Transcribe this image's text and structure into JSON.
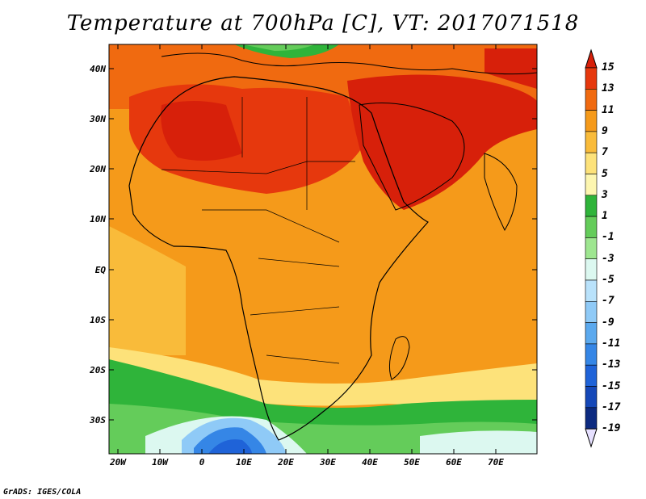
{
  "title": "Temperature at 700hPa [C], VT: 2017071518",
  "lat_labels": [
    "40N",
    "30N",
    "20N",
    "10N",
    "EQ",
    "10S",
    "20S",
    "30S"
  ],
  "lon_labels": [
    "20W",
    "10W",
    "0",
    "10E",
    "20E",
    "30E",
    "40E",
    "50E",
    "60E",
    "70E"
  ],
  "colorbar": {
    "labels": [
      "15",
      "13",
      "11",
      "9",
      "7",
      "5",
      "3",
      "1",
      "-1",
      "-3",
      "-5",
      "-7",
      "-9",
      "-11",
      "-13",
      "-15",
      "-17",
      "-19"
    ],
    "colors": [
      "#d7200a",
      "#e6380d",
      "#f06a10",
      "#f59a1a",
      "#f9bb3a",
      "#fde27a",
      "#fdf6b0",
      "#2fb43a",
      "#64cc5a",
      "#9ee690",
      "#dcf8f0",
      "#b9e2fb",
      "#8fcaf7",
      "#5ba9ee",
      "#3586e6",
      "#1f63d8",
      "#1548b8",
      "#0c2a80",
      "#08125a"
    ]
  },
  "credit": "GrADS: IGES/COLA"
}
